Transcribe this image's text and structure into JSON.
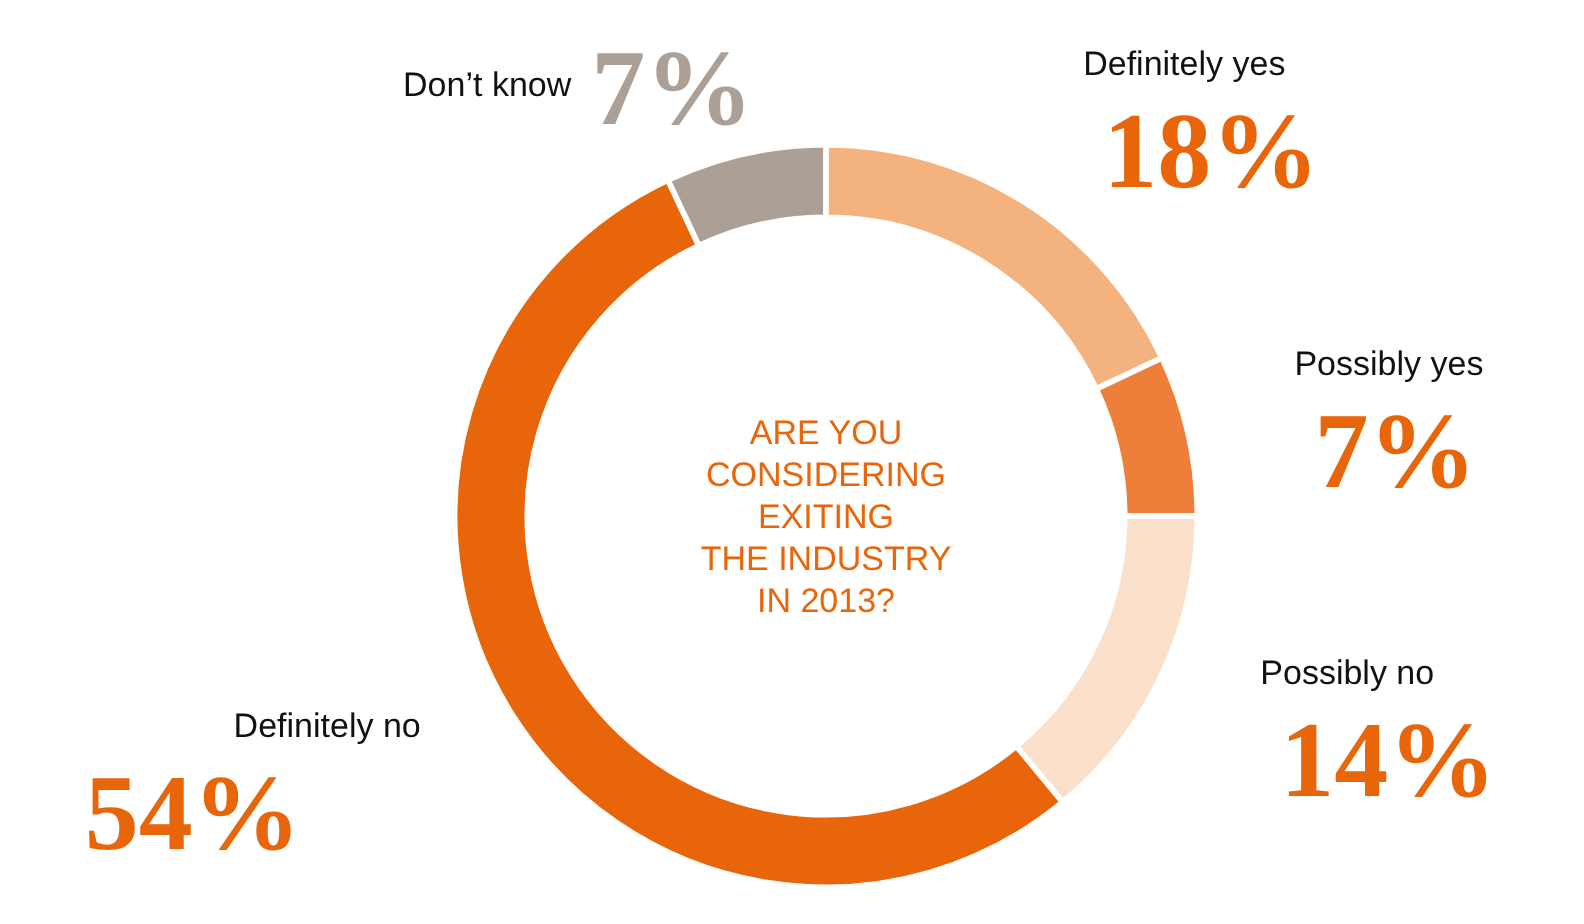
{
  "chart_data": {
    "type": "donut",
    "title": "ARE YOU\nCONSIDERING\nEXITING\nTHE INDUSTRY\nIN 2013?",
    "categories": [
      "Definitely yes",
      "Possibly yes",
      "Possibly no",
      "Definitely no",
      "Don’t know"
    ],
    "values": [
      18,
      7,
      14,
      54,
      7
    ],
    "colors": [
      "#f4b27f",
      "#ee7f3a",
      "#fbe0cb",
      "#e8650a",
      "#aca096"
    ],
    "value_labels": [
      "18%",
      "7%",
      "14%",
      "54%",
      "7%"
    ]
  }
}
